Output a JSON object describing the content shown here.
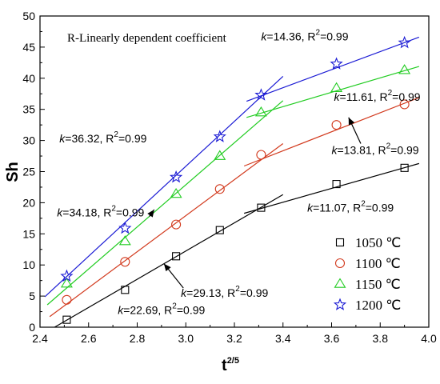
{
  "chart_data": {
    "type": "scatter",
    "note": "R-Linearly dependent coefficient",
    "xlabel": "t",
    "xlabel_sup": "2/5",
    "ylabel": "Sh",
    "xlim": [
      2.4,
      4.0
    ],
    "ylim": [
      0,
      50
    ],
    "x_ticks": [
      "2.4",
      "2.6",
      "2.8",
      "3.0",
      "3.2",
      "3.4",
      "3.6",
      "3.8",
      "4.0"
    ],
    "y_ticks": [
      "0",
      "5",
      "10",
      "15",
      "20",
      "25",
      "30",
      "35",
      "40",
      "45",
      "50"
    ],
    "grid": false,
    "legend_position": "bottom-right",
    "series": [
      {
        "name": "1050 ℃",
        "marker": "square",
        "color": "#000000",
        "x": [
          2.51,
          2.75,
          2.96,
          3.14,
          3.31,
          3.62,
          3.9
        ],
        "y": [
          1.2,
          6.0,
          11.4,
          15.6,
          19.2,
          23.0,
          25.6
        ],
        "fit1": {
          "x": [
            2.46,
            3.4
          ],
          "y": [
            0.0,
            21.3
          ]
        },
        "fit2": {
          "x": [
            3.24,
            3.96
          ],
          "y": [
            18.3,
            26.3
          ]
        }
      },
      {
        "name": "1100 ℃",
        "marker": "circle",
        "color": "#d23a1e",
        "x": [
          2.51,
          2.75,
          2.96,
          3.14,
          3.31,
          3.62,
          3.9
        ],
        "y": [
          4.4,
          10.5,
          16.5,
          22.2,
          27.7,
          32.5,
          35.8
        ],
        "fit1": {
          "x": [
            2.44,
            3.4
          ],
          "y": [
            1.7,
            29.5
          ]
        },
        "fit2": {
          "x": [
            3.24,
            3.96
          ],
          "y": [
            25.9,
            36.9
          ]
        }
      },
      {
        "name": "1150 ℃",
        "marker": "triangle",
        "color": "#22cc22",
        "x": [
          2.51,
          2.75,
          2.96,
          3.14,
          3.31,
          3.62,
          3.9
        ],
        "y": [
          7.0,
          13.8,
          21.4,
          27.5,
          34.5,
          38.4,
          41.3
        ],
        "fit1": {
          "x": [
            2.43,
            3.4
          ],
          "y": [
            3.6,
            36.4
          ]
        },
        "fit2": {
          "x": [
            3.25,
            3.96
          ],
          "y": [
            33.7,
            41.9
          ]
        }
      },
      {
        "name": "1200 ℃",
        "marker": "star",
        "color": "#1a1ad4",
        "x": [
          2.51,
          2.75,
          2.96,
          3.14,
          3.31,
          3.62,
          3.9
        ],
        "y": [
          8.2,
          15.9,
          24.1,
          30.6,
          37.3,
          42.3,
          45.7
        ],
        "fit1": {
          "x": [
            2.42,
            3.4
          ],
          "y": [
            4.9,
            40.3
          ]
        },
        "fit2": {
          "x": [
            3.25,
            3.96
          ],
          "y": [
            36.3,
            46.6
          ]
        }
      }
    ],
    "annotations": [
      {
        "k": "36.32",
        "r2": "0.99",
        "anchor": [
          2.48,
          29.7
        ],
        "arrow": null
      },
      {
        "k": "34.18",
        "r2": "0.99",
        "anchor": [
          2.47,
          17.8
        ],
        "arrow": [
          [
            2.85,
            17.8
          ],
          [
            2.87,
            18.9
          ]
        ]
      },
      {
        "k": "29.13",
        "r2": "0.99",
        "anchor": [
          2.98,
          4.9
        ],
        "arrow": [
          [
            2.99,
            6.3
          ],
          [
            2.91,
            10.2
          ]
        ]
      },
      {
        "k": "22.69",
        "r2": "0.99",
        "anchor": [
          2.72,
          2.1
        ],
        "arrow": null
      },
      {
        "k": "14.36",
        "r2": "0.99",
        "anchor": [
          3.31,
          46.1
        ],
        "arrow": null
      },
      {
        "k": "11.61",
        "r2": "0.99",
        "anchor": [
          3.61,
          36.4
        ],
        "arrow": null
      },
      {
        "k": "13.81",
        "r2": "0.99",
        "anchor": [
          3.6,
          27.8
        ],
        "arrow": [
          [
            3.72,
            29.5
          ],
          [
            3.67,
            33.7
          ]
        ]
      },
      {
        "k": "11.07",
        "r2": "0.99",
        "anchor": [
          3.5,
          18.6
        ],
        "arrow": null
      }
    ]
  }
}
